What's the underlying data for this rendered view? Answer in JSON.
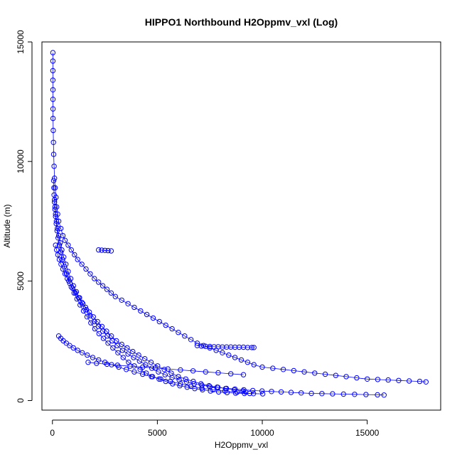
{
  "chart_data": {
    "type": "scatter",
    "title": "HIPPO1 Northbound H2Oppmv_vxl (Log)",
    "xlabel": "H2Oppmv_vxl",
    "ylabel": "Altitude (m)",
    "xlim": [
      -500,
      18500
    ],
    "ylim": [
      -400,
      15000
    ],
    "xticks": [
      0,
      5000,
      10000,
      15000
    ],
    "xtick_labels": [
      "0",
      "5000",
      "10000",
      "15000"
    ],
    "yticks": [
      0,
      5000,
      10000,
      15000
    ],
    "ytick_labels": [
      "0",
      "5000",
      "10000",
      "15000"
    ],
    "grid": false,
    "legend": "none",
    "marker": "open-circle",
    "connected": true,
    "color": "#0000ff",
    "series": [
      {
        "x": [
          20,
          20,
          20,
          20,
          25,
          25,
          30,
          30,
          40,
          50,
          60,
          80,
          100,
          130,
          170,
          200,
          250,
          300,
          400,
          500,
          600,
          750,
          900,
          1050,
          1200,
          1400,
          1600,
          1800,
          2000,
          2200,
          2400,
          2600,
          2800,
          3000,
          3300,
          3600,
          3900,
          4200,
          4500,
          4800,
          5100,
          5400,
          5700,
          6000,
          6300,
          6600,
          6900,
          7200,
          7500,
          7800,
          8100,
          8400,
          8700,
          9000,
          9300,
          9600,
          10000,
          10500,
          11000,
          11500,
          12000,
          12500,
          13000,
          13500,
          14000,
          14500,
          15000,
          15500,
          16000,
          16500,
          17000,
          17500,
          17800
        ],
        "y": [
          14550,
          14200,
          13800,
          13400,
          13000,
          12600,
          12200,
          11800,
          11300,
          10800,
          10300,
          9800,
          9300,
          8900,
          8500,
          8100,
          7800,
          7500,
          7200,
          6900,
          6700,
          6500,
          6300,
          6100,
          5900,
          5700,
          5500,
          5300,
          5100,
          4950,
          4800,
          4650,
          4500,
          4350,
          4200,
          4050,
          3900,
          3750,
          3600,
          3450,
          3300,
          3150,
          3000,
          2850,
          2700,
          2550,
          2400,
          2300,
          2200,
          2100,
          2000,
          1900,
          1800,
          1700,
          1600,
          1500,
          1400,
          1350,
          1300,
          1250,
          1200,
          1150,
          1100,
          1050,
          1000,
          950,
          900,
          880,
          860,
          840,
          820,
          800,
          780
        ]
      },
      {
        "x": [
          60,
          70,
          80,
          100,
          120,
          150,
          180,
          220,
          270,
          330,
          400,
          480,
          570,
          670,
          780,
          900,
          1030,
          1170,
          1320,
          1480,
          1650,
          1830,
          2020,
          2220,
          2430,
          2650,
          2880,
          3120,
          3370,
          3630,
          3900,
          4180,
          4470,
          4770,
          5080,
          5400,
          5730,
          6070,
          6420,
          6780,
          7150,
          7530,
          7920,
          8320,
          8730,
          9150,
          9580,
          10020
        ],
        "y": [
          9200,
          8900,
          8600,
          8300,
          8000,
          7700,
          7400,
          7100,
          6800,
          6500,
          6200,
          5900,
          5600,
          5300,
          5000,
          4750,
          4500,
          4250,
          4000,
          3750,
          3500,
          3250,
          3000,
          2800,
          2600,
          2400,
          2200,
          2000,
          1800,
          1600,
          1450,
          1300,
          1150,
          1000,
          900,
          800,
          700,
          620,
          560,
          500,
          450,
          400,
          360,
          330,
          310,
          300,
          290,
          280
        ]
      },
      {
        "x": [
          100,
          120,
          150,
          190,
          240,
          300,
          370,
          450,
          540,
          640,
          750,
          870,
          1000,
          1140,
          1290,
          1450,
          1620,
          1800,
          1990,
          2190,
          2400,
          2620,
          2850,
          3090,
          3340,
          3600,
          3870,
          4150,
          4440,
          4740,
          5050,
          5370,
          5700,
          6040,
          6390,
          6750,
          7120,
          7500,
          7890,
          8290,
          8700,
          9120,
          9550,
          9990,
          10440,
          10900,
          11370,
          11850,
          12340,
          12840,
          13350,
          13870,
          14400,
          14940,
          15490,
          15800
        ],
        "y": [
          8400,
          8100,
          7800,
          7500,
          7200,
          6900,
          6600,
          6300,
          6000,
          5700,
          5400,
          5100,
          4800,
          4550,
          4300,
          4050,
          3800,
          3550,
          3300,
          3100,
          2900,
          2700,
          2500,
          2300,
          2100,
          1950,
          1800,
          1650,
          1500,
          1350,
          1200,
          1080,
          960,
          860,
          780,
          700,
          640,
          590,
          550,
          510,
          480,
          450,
          420,
          400,
          380,
          360,
          340,
          320,
          300,
          290,
          280,
          270,
          260,
          250,
          240,
          230
        ]
      },
      {
        "x": [
          150,
          200,
          260,
          330,
          410,
          500,
          600,
          710,
          830,
          960,
          1100,
          1250,
          1410,
          1580,
          1760,
          1950,
          2150,
          2360,
          2580,
          2810,
          3050,
          3300,
          3560,
          3830,
          4110,
          4400,
          4700,
          5010,
          5330,
          5660,
          6000,
          6350,
          6710,
          7080,
          7460,
          7850,
          8250,
          8660,
          9080,
          9200
        ],
        "y": [
          6500,
          6300,
          6100,
          5900,
          5700,
          5500,
          5300,
          5100,
          4900,
          4700,
          4500,
          4300,
          4100,
          3900,
          3700,
          3500,
          3300,
          3100,
          2900,
          2700,
          2500,
          2350,
          2200,
          2050,
          1900,
          1750,
          1600,
          1450,
          1300,
          1150,
          1000,
          900,
          800,
          700,
          620,
          560,
          500,
          450,
          400,
          360
        ]
      },
      {
        "x": [
          300,
          400,
          520,
          660,
          820,
          1000,
          1200,
          1420,
          1660,
          1920,
          2200,
          2500,
          2820,
          3160,
          3520,
          3900,
          4300,
          4720,
          5160,
          5620,
          6100,
          6600,
          7120,
          7660,
          8220,
          8800,
          9400
        ],
        "y": [
          2700,
          2600,
          2500,
          2400,
          2300,
          2200,
          2100,
          2000,
          1900,
          1800,
          1700,
          1600,
          1500,
          1400,
          1300,
          1200,
          1100,
          1000,
          900,
          800,
          700,
          600,
          520,
          450,
          400,
          350,
          300
        ]
      },
      {
        "x": [
          6900,
          7100,
          7300,
          7500,
          7700,
          7900,
          8100,
          8300,
          8500,
          8700,
          8900,
          9100,
          9300,
          9500,
          9600
        ],
        "y": [
          2300,
          2280,
          2270,
          2260,
          2250,
          2250,
          2240,
          2240,
          2240,
          2230,
          2230,
          2230,
          2220,
          2220,
          2220
        ]
      },
      {
        "x": [
          2200,
          2350,
          2500,
          2650,
          2800
        ],
        "y": [
          6300,
          6290,
          6280,
          6270,
          6260
        ]
      },
      {
        "x": [
          1700,
          2100,
          2600,
          3100,
          3700,
          4300,
          4900,
          5500,
          6100,
          6700,
          7300,
          7900,
          8500,
          9100
        ],
        "y": [
          1600,
          1560,
          1520,
          1480,
          1440,
          1400,
          1360,
          1320,
          1280,
          1240,
          1200,
          1160,
          1120,
          1080
        ]
      }
    ]
  }
}
